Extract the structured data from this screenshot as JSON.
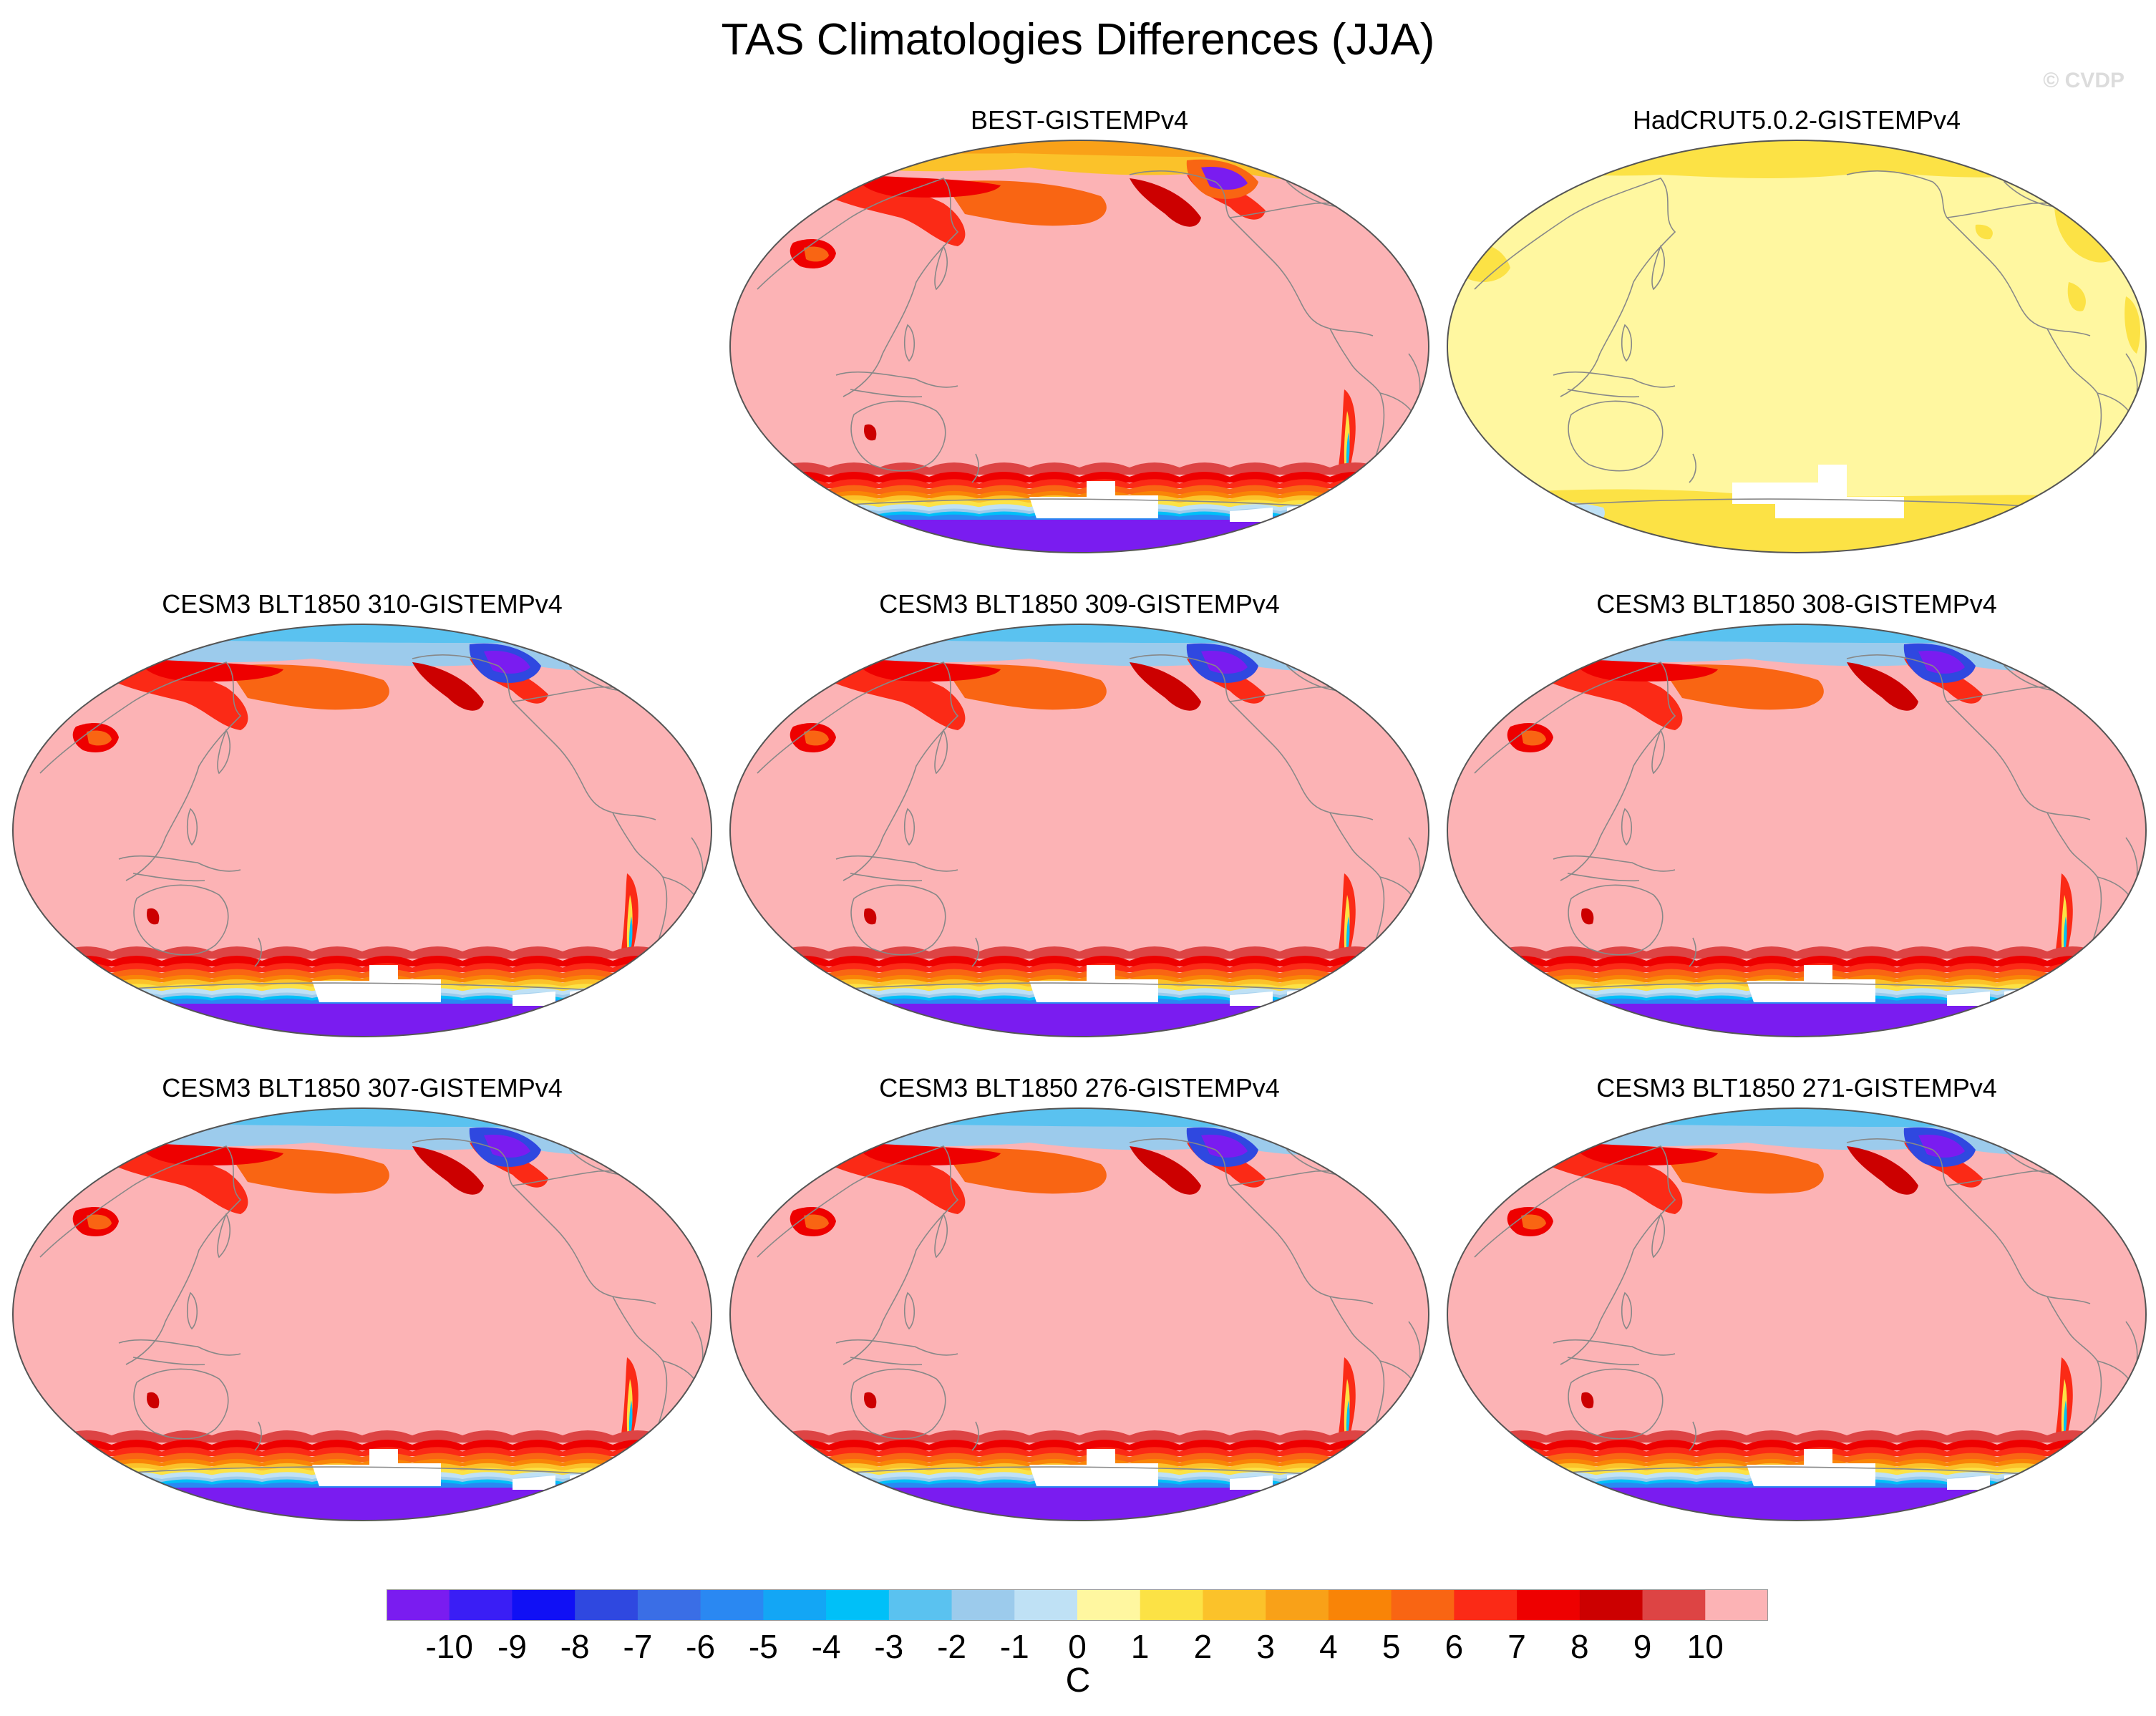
{
  "chart_data": {
    "type": "heatmap",
    "title": "TAS Climatologies Differences (JJA)",
    "watermark": "© CVDP",
    "projection": "Robinson-like global map, centered on the Pacific",
    "colors": {
      "land_outline": "#888888",
      "map_edge": "#555555",
      "missing": "#ffffff"
    },
    "colorbar": {
      "units": "C",
      "ticks": [
        "-10",
        "-9",
        "-8",
        "-7",
        "-6",
        "-5",
        "-4",
        "-3",
        "-2",
        "-1",
        "0",
        "1",
        "2",
        "3",
        "4",
        "5",
        "6",
        "7",
        "8",
        "9",
        "10"
      ],
      "bins": [
        {
          "range": "< -10",
          "color": "#7a1cf0"
        },
        {
          "range": "-10 to -9",
          "color": "#3a1ef5"
        },
        {
          "range": "-9 to -8",
          "color": "#1010f5"
        },
        {
          "range": "-8 to -7",
          "color": "#2f48e0"
        },
        {
          "range": "-7 to -6",
          "color": "#3a6ee6"
        },
        {
          "range": "-6 to -5",
          "color": "#2a88f2"
        },
        {
          "range": "-5 to -4",
          "color": "#13a6f5"
        },
        {
          "range": "-4 to -3",
          "color": "#00c0f8"
        },
        {
          "range": "-3 to -2",
          "color": "#5ac2f0"
        },
        {
          "range": "-2 to -1",
          "color": "#9ccbec"
        },
        {
          "range": "-1 to 0",
          "color": "#bfe1f5"
        },
        {
          "range": "0 to 1",
          "color": "#fff7a0"
        },
        {
          "range": "1 to 2",
          "color": "#fce245"
        },
        {
          "range": "2 to 3",
          "color": "#fbc22a"
        },
        {
          "range": "3 to 4",
          "color": "#f9a118"
        },
        {
          "range": "4 to 5",
          "color": "#f98407"
        },
        {
          "range": "5 to 6",
          "color": "#f96513"
        },
        {
          "range": "6 to 7",
          "color": "#fb2a16"
        },
        {
          "range": "7 to 8",
          "color": "#ee0000"
        },
        {
          "range": "8 to 9",
          "color": "#cc0000"
        },
        {
          "range": "9 to 10",
          "color": "#dd4444"
        },
        {
          "range": "> 10",
          "color": "#fcb3b5"
        }
      ]
    },
    "panels": [
      {
        "title": "BEST-GISTEMPv4",
        "pattern": "best"
      },
      {
        "title": "HadCRUT5.0.2-GISTEMPv4",
        "pattern": "hadcrut"
      },
      {
        "title": "CESM3 BLT1850 310-GISTEMPv4",
        "pattern": "cesm"
      },
      {
        "title": "CESM3 BLT1850 309-GISTEMPv4",
        "pattern": "cesm"
      },
      {
        "title": "CESM3 BLT1850 308-GISTEMPv4",
        "pattern": "cesm"
      },
      {
        "title": "CESM3 BLT1850 307-GISTEMPv4",
        "pattern": "cesm"
      },
      {
        "title": "CESM3 BLT1850 276-GISTEMPv4",
        "pattern": "cesm"
      },
      {
        "title": "CESM3 BLT1850 271-GISTEMPv4",
        "pattern": "cesm"
      }
    ]
  }
}
